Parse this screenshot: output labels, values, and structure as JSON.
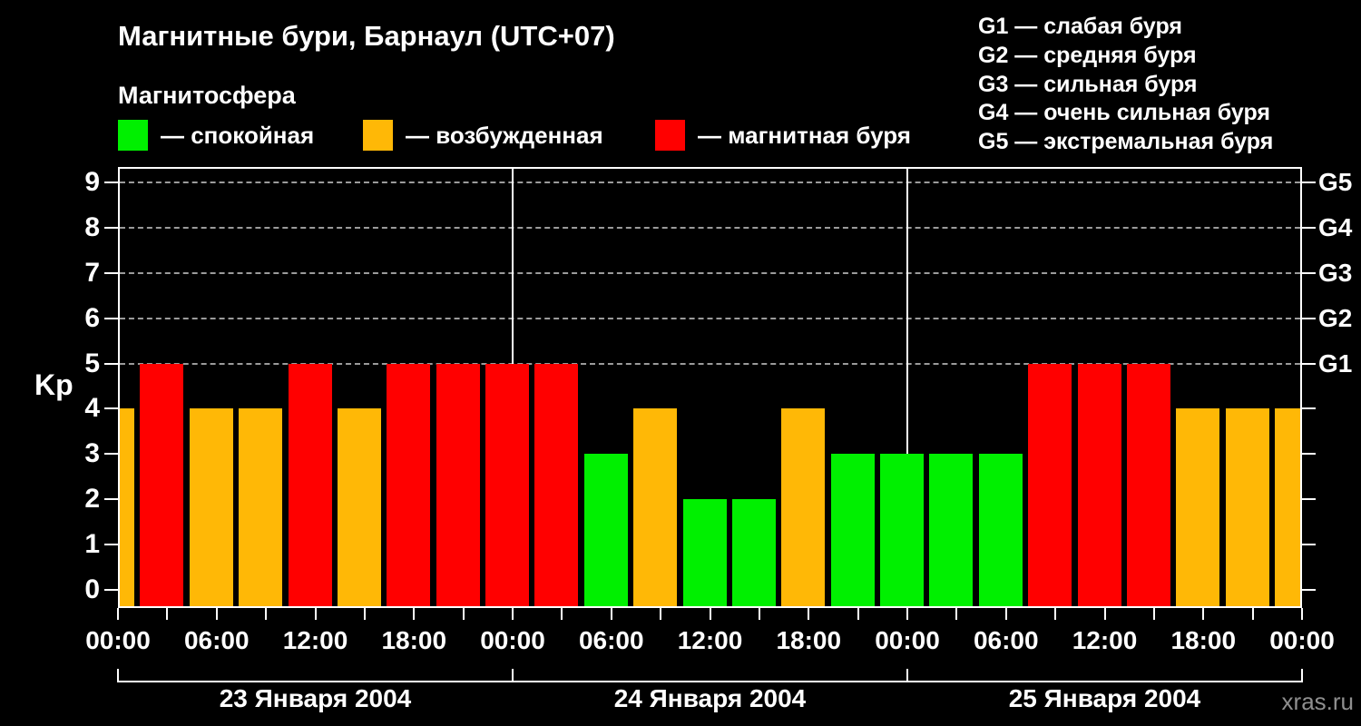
{
  "header": {
    "title": "Магнитные бури, Барнаул (UTC+07)",
    "subtitle": "Магнитосфера",
    "legend": [
      {
        "key": "quiet",
        "label": "— спокойная",
        "color": "green"
      },
      {
        "key": "excited",
        "label": "— возбужденная",
        "color": "orange"
      },
      {
        "key": "storm",
        "label": "— магнитная буря",
        "color": "red"
      }
    ],
    "storm_scale_legend": [
      "G1 — слабая буря",
      "G2 — средняя буря",
      "G3 — сильная буря",
      "G4 — очень сильная буря",
      "G5 — экстремальная буря"
    ]
  },
  "watermark": "xras.ru",
  "colors": {
    "green": "#00f000",
    "orange": "#ffb806",
    "red": "#ff0000",
    "background": "#000000",
    "text": "#ffffff",
    "grid": "#9b9b9b",
    "watermark": "#8f8f8f"
  },
  "chart_data": {
    "type": "bar",
    "title": "Магнитные бури, Барнаул (UTC+07)",
    "ylabel": "Kp",
    "ylim": [
      0,
      9.7
    ],
    "y_ticks": [
      0,
      1,
      2,
      3,
      4,
      5,
      6,
      7,
      8,
      9
    ],
    "grid_levels": [
      5,
      6,
      7,
      8,
      9
    ],
    "grid_on": true,
    "right_axis_labels": [
      {
        "level": 5,
        "label": "G1"
      },
      {
        "level": 6,
        "label": "G2"
      },
      {
        "level": 7,
        "label": "G3"
      },
      {
        "level": 8,
        "label": "G4"
      },
      {
        "level": 9,
        "label": "G5"
      }
    ],
    "x_tick_labels": [
      "00:00",
      "06:00",
      "12:00",
      "18:00",
      "00:00",
      "06:00",
      "12:00",
      "18:00",
      "00:00",
      "06:00",
      "12:00",
      "18:00",
      "00:00"
    ],
    "bar_interval_hours": 3,
    "color_rule": {
      "green_kp_max": 3,
      "orange_kp": 4,
      "red_kp_min": 5
    },
    "leading_partial_bar": {
      "note": "end of previous day, clipped at left axis",
      "kp": 4
    },
    "days": [
      {
        "date_label": "23 Января 2004",
        "kp": [
          5,
          4,
          4,
          5,
          4,
          5,
          5,
          5
        ]
      },
      {
        "date_label": "24 Января 2004",
        "kp": [
          5,
          3,
          4,
          2,
          2,
          4,
          3,
          3
        ]
      },
      {
        "date_label": "25 Января 2004",
        "kp": [
          3,
          3,
          5,
          5,
          5,
          4,
          4,
          4
        ]
      }
    ]
  }
}
